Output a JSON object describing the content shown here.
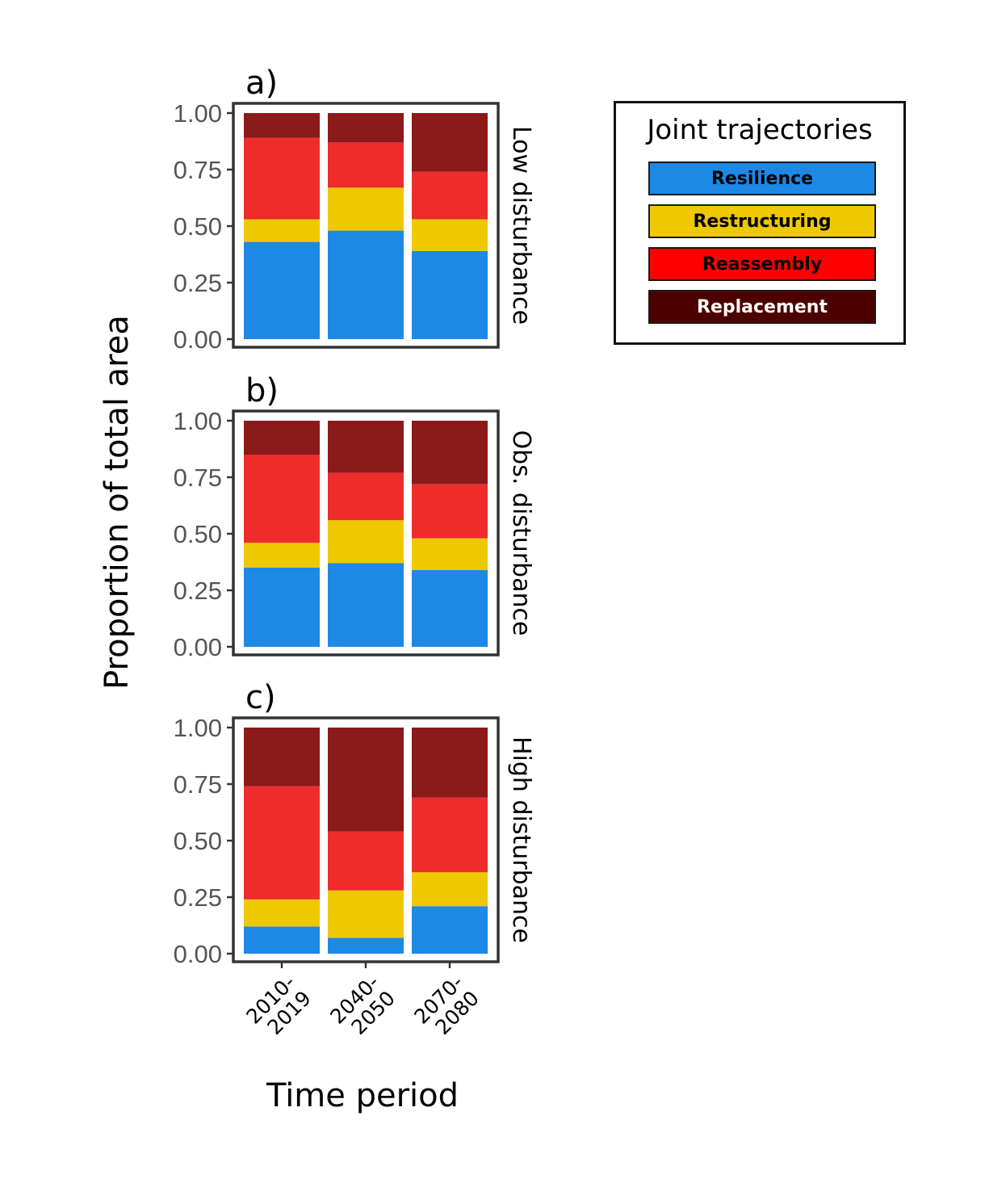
{
  "chart_data": {
    "type": "bar",
    "stacked": true,
    "ylabel": "Proportion of total area",
    "xlabel": "Time period",
    "ylim": [
      0,
      1
    ],
    "yticks": [
      "0.00",
      "0.25",
      "0.50",
      "0.75",
      "1.00"
    ],
    "categories": [
      {
        "line1": "2010-",
        "line2": "2019"
      },
      {
        "line1": "2040-",
        "line2": "2050"
      },
      {
        "line1": "2070-",
        "line2": "2080"
      }
    ],
    "legend": {
      "title": "Joint trajectories",
      "entries": [
        {
          "name": "Resilience",
          "color": "#1E88E5",
          "text_color": "#000000"
        },
        {
          "name": "Restructuring",
          "color": "#EEC800",
          "text_color": "#000000"
        },
        {
          "name": "Reassembly",
          "color": "#EE2C2C",
          "text_color": "#000000"
        },
        {
          "name": "Replacement",
          "color": "#8B1A1A",
          "text_color": "#ffffff"
        }
      ]
    },
    "legend_key_colors": [
      "#1E88E5",
      "#EEC800",
      "#FF0000",
      "#4D0000"
    ],
    "panels": [
      {
        "tag": "a)",
        "strip": "Low disturbance",
        "series": [
          {
            "name": "Resilience",
            "values": [
              0.43,
              0.48,
              0.39
            ]
          },
          {
            "name": "Restructuring",
            "values": [
              0.1,
              0.19,
              0.14
            ]
          },
          {
            "name": "Reassembly",
            "values": [
              0.36,
              0.2,
              0.21
            ]
          },
          {
            "name": "Replacement",
            "values": [
              0.11,
              0.13,
              0.26
            ]
          }
        ]
      },
      {
        "tag": "b)",
        "strip": "Obs. disturbance",
        "series": [
          {
            "name": "Resilience",
            "values": [
              0.35,
              0.37,
              0.34
            ]
          },
          {
            "name": "Restructuring",
            "values": [
              0.11,
              0.19,
              0.14
            ]
          },
          {
            "name": "Reassembly",
            "values": [
              0.39,
              0.21,
              0.24
            ]
          },
          {
            "name": "Replacement",
            "values": [
              0.15,
              0.23,
              0.28
            ]
          }
        ]
      },
      {
        "tag": "c)",
        "strip": "High disturbance",
        "series": [
          {
            "name": "Resilience",
            "values": [
              0.12,
              0.07,
              0.21
            ]
          },
          {
            "name": "Restructuring",
            "values": [
              0.12,
              0.21,
              0.15
            ]
          },
          {
            "name": "Reassembly",
            "values": [
              0.5,
              0.26,
              0.33
            ]
          },
          {
            "name": "Replacement",
            "values": [
              0.26,
              0.46,
              0.31
            ]
          }
        ]
      }
    ]
  }
}
